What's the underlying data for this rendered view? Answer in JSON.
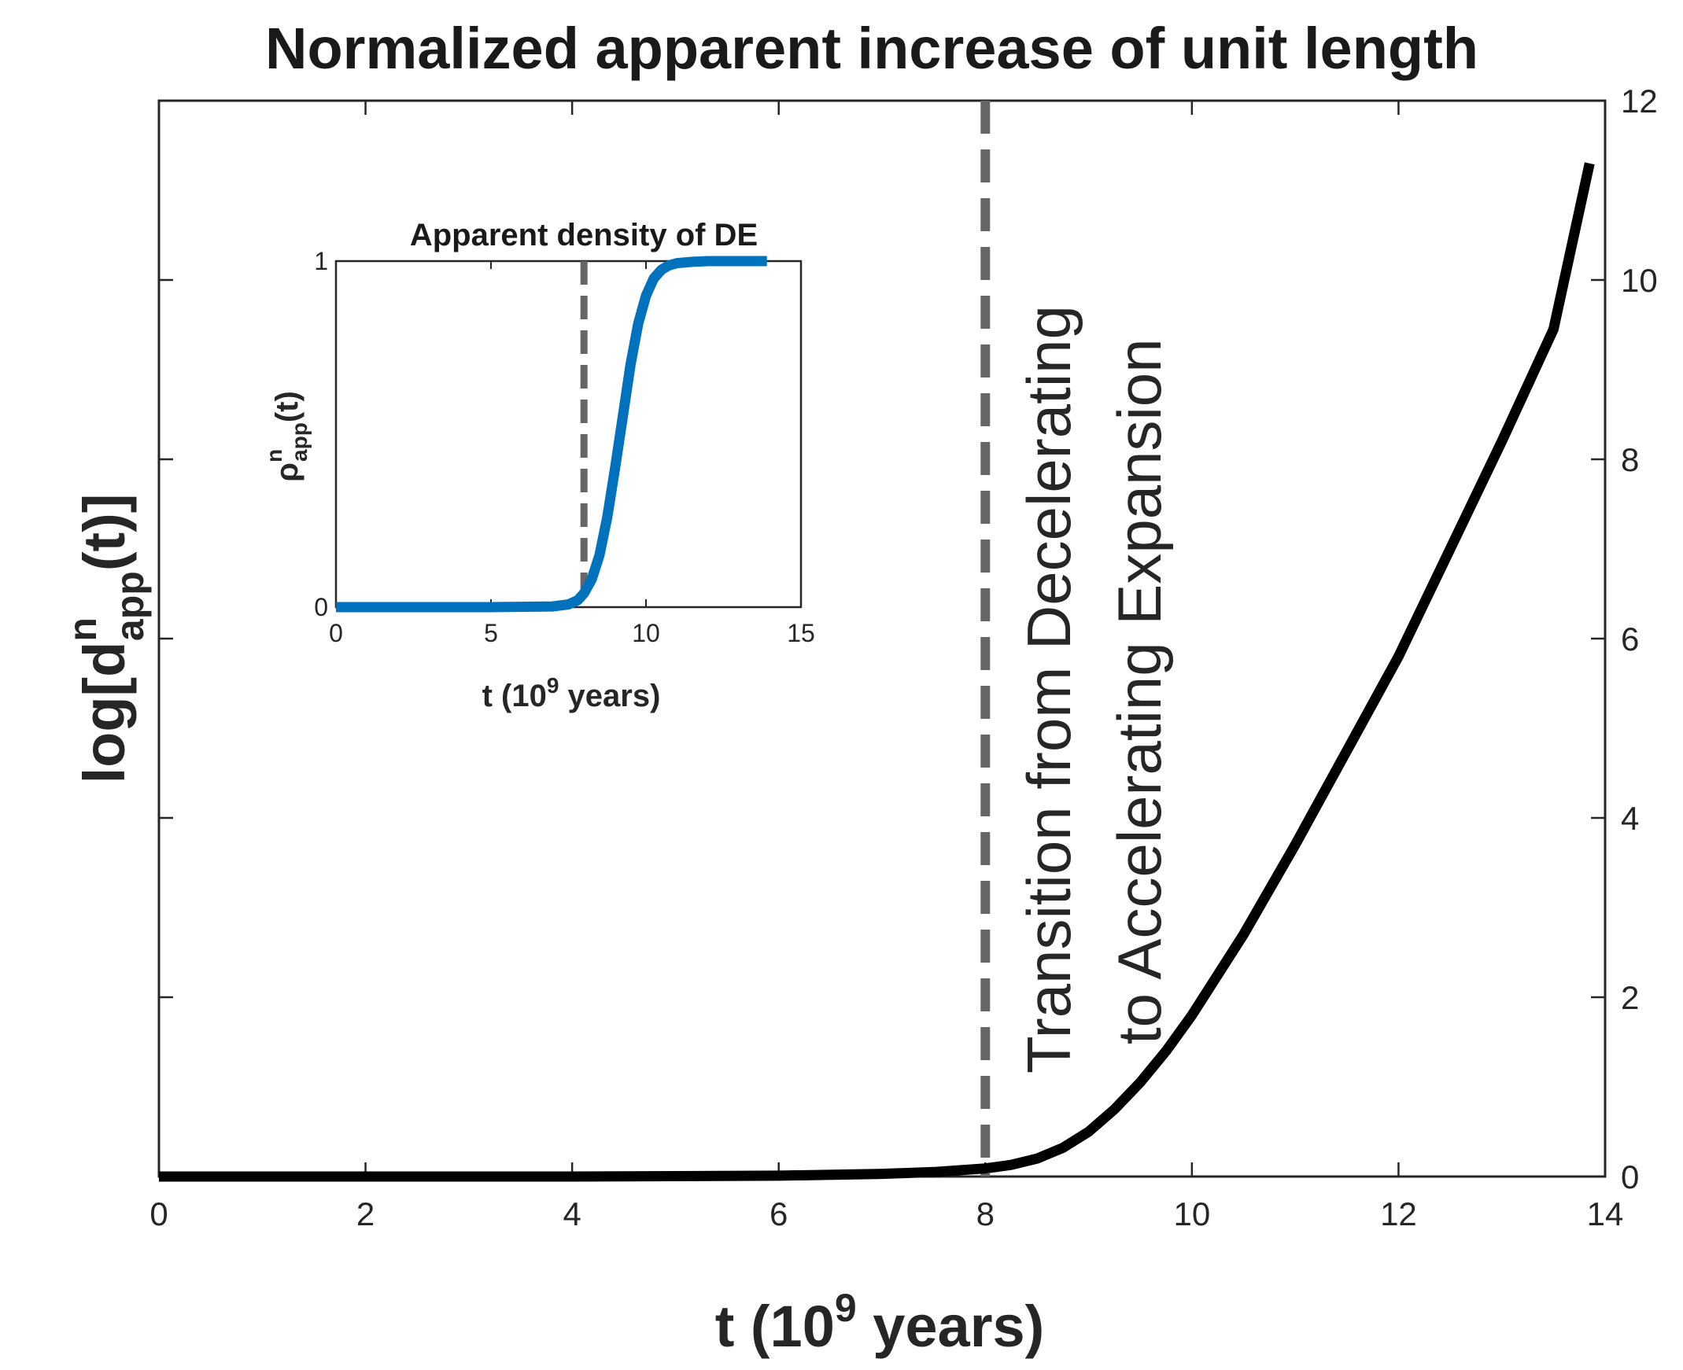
{
  "chart_data": [
    {
      "type": "line",
      "title": "Normalized apparent increase of unit length",
      "xlabel": "t (10^9 years)",
      "xlabel_parts": {
        "main": "t (10",
        "sup": "9",
        "tail": " years)"
      },
      "ylabel": "log[d^n_app(t)]",
      "ylabel_parts": {
        "main": "log[d",
        "sup": "n",
        "sub": "app",
        "tail": "(t)]"
      },
      "xlim": [
        0,
        14
      ],
      "ylim": [
        0,
        12
      ],
      "xticks": [
        "0",
        "2",
        "4",
        "6",
        "8",
        "10",
        "12",
        "14"
      ],
      "yticks": [
        "0",
        "2",
        "4",
        "6",
        "8",
        "10",
        "12"
      ],
      "y_axis_side": "right",
      "grid": false,
      "series": [
        {
          "name": "log[d^n_app(t)]",
          "color": "#000000",
          "x": [
            0,
            2,
            4,
            6,
            7,
            7.5,
            8,
            8.25,
            8.5,
            8.75,
            9,
            9.25,
            9.5,
            9.75,
            10,
            10.5,
            11,
            11.5,
            12,
            12.5,
            13,
            13.5,
            13.85
          ],
          "y": [
            0.0,
            0.0,
            0.0,
            0.01,
            0.03,
            0.05,
            0.09,
            0.13,
            0.2,
            0.32,
            0.5,
            0.75,
            1.05,
            1.4,
            1.8,
            2.7,
            3.7,
            4.75,
            5.8,
            7.0,
            8.2,
            9.45,
            11.3
          ]
        }
      ],
      "annotations": [
        {
          "kind": "vline",
          "x": 8,
          "style": "dashed",
          "color": "#666666"
        },
        {
          "kind": "text",
          "lines": [
            "Transition from Decelerating",
            "to Accelerating Expansion"
          ],
          "rotation": "vertical"
        }
      ]
    },
    {
      "type": "line",
      "inset": true,
      "title": "Apparent density of DE",
      "xlabel": "t (10^9 years)",
      "xlabel_parts": {
        "main": "t (10",
        "sup": "9",
        "tail": " years)"
      },
      "ylabel": "ρ^n_app(t)",
      "ylabel_parts": {
        "main": "ρ",
        "sup": "n",
        "sub": "app",
        "tail": "(t)"
      },
      "xlim": [
        0,
        15
      ],
      "ylim": [
        0,
        1
      ],
      "xticks": [
        "0",
        "5",
        "10",
        "15"
      ],
      "yticks": [
        "0",
        "1"
      ],
      "grid": false,
      "series": [
        {
          "name": "ρ^n_app(t)",
          "color": "#0072bd",
          "x": [
            0,
            5,
            7,
            7.5,
            7.8,
            8,
            8.25,
            8.5,
            8.75,
            9,
            9.25,
            9.5,
            9.75,
            10,
            10.25,
            10.5,
            10.75,
            11,
            11.5,
            12,
            13,
            13.9
          ],
          "y": [
            0.0,
            0.0,
            0.002,
            0.008,
            0.02,
            0.04,
            0.08,
            0.15,
            0.26,
            0.4,
            0.55,
            0.7,
            0.82,
            0.9,
            0.95,
            0.975,
            0.988,
            0.994,
            0.998,
            1.0,
            1.0,
            1.0
          ]
        }
      ],
      "annotations": [
        {
          "kind": "vline",
          "x": 8,
          "style": "dashed",
          "color": "#666666"
        }
      ]
    }
  ]
}
